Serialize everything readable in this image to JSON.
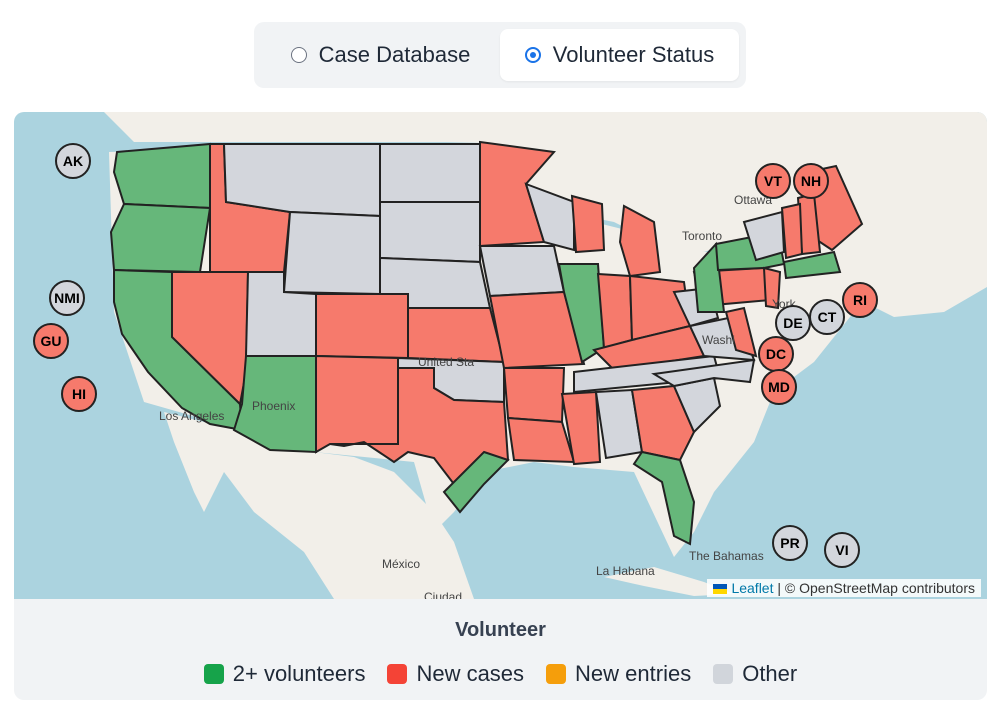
{
  "toggle": {
    "options": [
      {
        "label": "Case Database",
        "selected": false
      },
      {
        "label": "Volunteer Status",
        "selected": true
      }
    ]
  },
  "map": {
    "attribution": {
      "link": "Leaflet",
      "text": "| © OpenStreetMap contributors"
    },
    "place_labels": [
      "Ottawa",
      "Toronto",
      "Phoenix",
      "Los Angeles",
      "México",
      "La Habana",
      "The Bahamas",
      "Ciudad",
      "York",
      "Washi",
      "United Sta"
    ],
    "territory_badges": [
      {
        "label": "AK",
        "status": "other"
      },
      {
        "label": "NMI",
        "status": "other"
      },
      {
        "label": "GU",
        "status": "new_cases"
      },
      {
        "label": "HI",
        "status": "new_cases"
      },
      {
        "label": "VT",
        "status": "new_cases"
      },
      {
        "label": "NH",
        "status": "new_cases"
      },
      {
        "label": "RI",
        "status": "new_cases"
      },
      {
        "label": "DE",
        "status": "other"
      },
      {
        "label": "CT",
        "status": "other"
      },
      {
        "label": "DC",
        "status": "new_cases"
      },
      {
        "label": "MD",
        "status": "new_cases"
      },
      {
        "label": "PR",
        "status": "other"
      },
      {
        "label": "VI",
        "status": "other"
      }
    ]
  },
  "legend": {
    "title": "Volunteer",
    "items": [
      {
        "label": "2+ volunteers",
        "color": "#16a34a"
      },
      {
        "label": "New cases",
        "color": "#f44336"
      },
      {
        "label": "New entries",
        "color": "#f59e0b"
      },
      {
        "label": "Other",
        "color": "#d1d5db"
      }
    ]
  },
  "colors": {
    "volunteers": "#66b77a",
    "new_cases": "#f67a6c",
    "other": "#d3d6dc",
    "water": "#abd3df",
    "land": "#f2efe9"
  }
}
